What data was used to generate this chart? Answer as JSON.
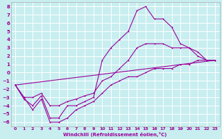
{
  "xlabel": "Windchill (Refroidissement éolien,°C)",
  "bg_color": "#c8eef0",
  "grid_color": "#ffffff",
  "line_color": "#990099",
  "xlim": [
    -0.5,
    23.5
  ],
  "ylim": [
    -6.5,
    8.5
  ],
  "xticks": [
    0,
    1,
    2,
    3,
    4,
    5,
    6,
    7,
    8,
    9,
    10,
    11,
    12,
    13,
    14,
    15,
    16,
    17,
    18,
    19,
    20,
    21,
    22,
    23
  ],
  "yticks": [
    -6,
    -5,
    -4,
    -3,
    -2,
    -1,
    0,
    1,
    2,
    3,
    4,
    5,
    6,
    7,
    8
  ],
  "line1_x": [
    0,
    1,
    2,
    3,
    4,
    5,
    6,
    7,
    8,
    9,
    10,
    11,
    12,
    13,
    14,
    15,
    16,
    17,
    18,
    19,
    20,
    21,
    22,
    23
  ],
  "line1_y": [
    -1.5,
    -3.0,
    -4.5,
    -3.2,
    -6.0,
    -6.0,
    -5.5,
    -4.5,
    -4.0,
    -3.5,
    -2.5,
    -1.5,
    -1.0,
    -0.5,
    -0.5,
    0.0,
    0.5,
    0.5,
    0.5,
    1.0,
    1.0,
    1.5,
    1.5,
    1.5
  ],
  "line2_x": [
    0,
    1,
    2,
    3,
    4,
    5,
    6,
    7,
    8,
    9,
    10,
    11,
    12,
    13,
    14,
    15,
    16,
    17,
    18,
    19,
    20,
    21,
    22,
    23
  ],
  "line2_y": [
    -1.5,
    -3.2,
    -4.0,
    -2.8,
    -5.5,
    -5.5,
    -4.0,
    -4.0,
    -3.5,
    -3.0,
    1.5,
    3.0,
    4.0,
    5.0,
    7.5,
    8.0,
    6.5,
    6.5,
    5.5,
    3.5,
    3.0,
    2.5,
    1.5,
    1.5
  ],
  "line3_x": [
    0,
    1,
    2,
    3,
    4,
    5,
    6,
    7,
    8,
    9,
    10,
    11,
    12,
    13,
    14,
    15,
    16,
    17,
    18,
    19,
    20,
    21,
    22,
    23
  ],
  "line3_y": [
    -1.5,
    -3.0,
    -3.0,
    -2.5,
    -4.0,
    -4.0,
    -3.5,
    -3.2,
    -2.8,
    -2.5,
    -1.0,
    -0.5,
    0.5,
    1.5,
    3.0,
    3.5,
    3.5,
    3.5,
    3.0,
    3.0,
    3.0,
    2.0,
    1.5,
    1.5
  ],
  "line4_x": [
    0,
    23
  ],
  "line4_y": [
    -1.5,
    1.5
  ]
}
